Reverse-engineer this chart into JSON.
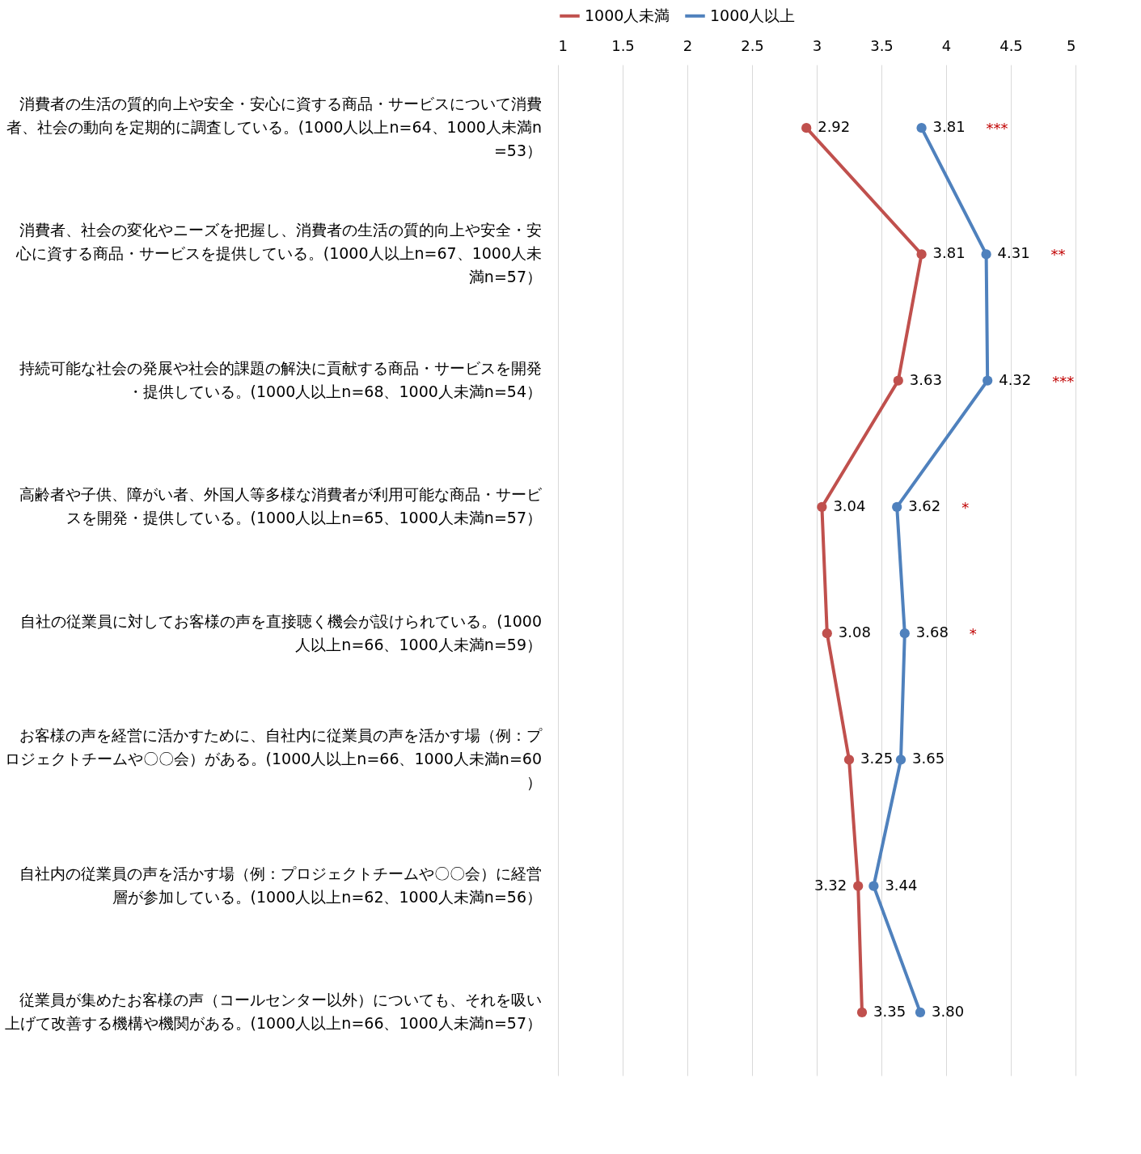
{
  "chart_data": {
    "type": "line",
    "orientation": "horizontal",
    "categories": [
      "消費者の生活の質的向上や安全・安心に資する商品・サービスについて消費者、社会の動向を定期的に調査している。(1000人以上n=64、1000人未満n=53）",
      "消費者、社会の変化やニーズを把握し、消費者の生活の質的向上や安全・安心に資する商品・サービスを提供している。(1000人以上n=67、1000人未満n=57）",
      "持続可能な社会の発展や社会的課題の解決に貢献する商品・サービスを開発・提供している。(1000人以上n=68、1000人未満n=54）",
      "高齢者や子供、障がい者、外国人等多様な消費者が利用可能な商品・サービスを開発・提供している。(1000人以上n=65、1000人未満n=57）",
      "自社の従業員に対してお客様の声を直接聴く機会が設けられている。(1000人以上n=66、1000人未満n=59）",
      "お客様の声を経営に活かすために、自社内に従業員の声を活かす場（例：プロジェクトチームや〇〇会）がある。(1000人以上n=66、1000人未満n=60）",
      "自社内の従業員の声を活かす場（例：プロジェクトチームや〇〇会）に経営層が参加している。(1000人以上n=62、1000人未満n=56）",
      "従業員が集めたお客様の声（コールセンター以外）についても、それを吸い上げて改善する機構や機関がある。(1000人以上n=66、1000人未満n=57）"
    ],
    "series": [
      {
        "name": "1000人未満",
        "color": "#c0504d",
        "values": [
          2.92,
          3.81,
          3.63,
          3.04,
          3.08,
          3.25,
          3.32,
          3.35
        ],
        "value_labels": [
          "2.92",
          "3.81",
          "3.63",
          "3.04",
          "3.08",
          "3.25",
          "3.32",
          "3.35"
        ]
      },
      {
        "name": "1000人以上",
        "color": "#4f81bd",
        "values": [
          3.81,
          4.31,
          4.32,
          3.62,
          3.68,
          3.65,
          3.44,
          3.8
        ],
        "value_labels": [
          "3.81",
          "4.31",
          "4.32",
          "3.62",
          "3.68",
          "3.65",
          "3.44",
          "3.80"
        ]
      }
    ],
    "xlim": [
      1,
      5
    ],
    "xticks": [
      1,
      1.5,
      2,
      2.5,
      3,
      3.5,
      4,
      4.5,
      5
    ],
    "grid": "x",
    "legend": "top",
    "marker": "circle",
    "annotations": [
      "***",
      "**",
      "***",
      "*",
      "*"
    ]
  }
}
